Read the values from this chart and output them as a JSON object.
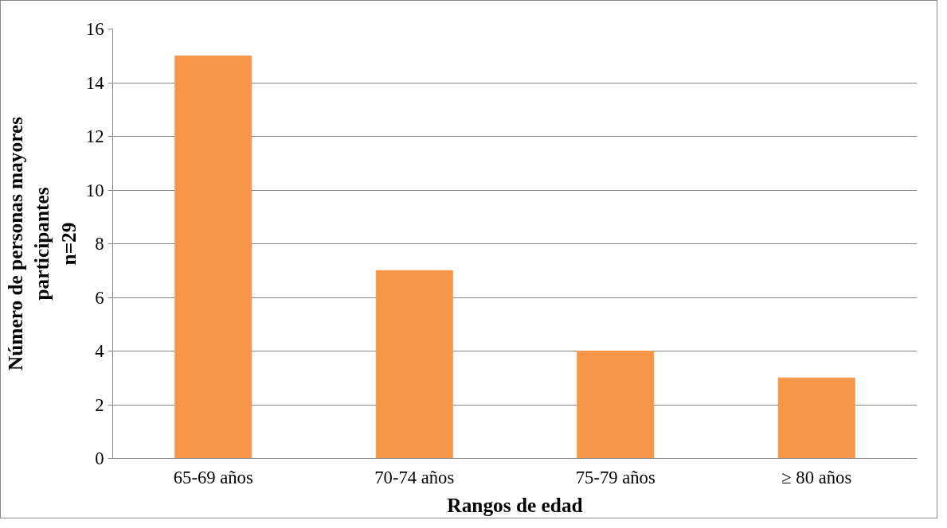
{
  "chart_data": {
    "type": "bar",
    "xlabel": "Rangos de edad",
    "ylabel": "Número de personas mayores\nparticipantes\nn=29",
    "categories": [
      "65-69 años",
      "70-74 años",
      "75-79 años",
      "≥ 80 años"
    ],
    "values": [
      15,
      7,
      4,
      3
    ],
    "color": "#f79646",
    "ylim": [
      0,
      16
    ],
    "yticks": [
      0,
      2,
      4,
      6,
      8,
      10,
      12,
      14,
      16
    ],
    "grid": "y"
  }
}
